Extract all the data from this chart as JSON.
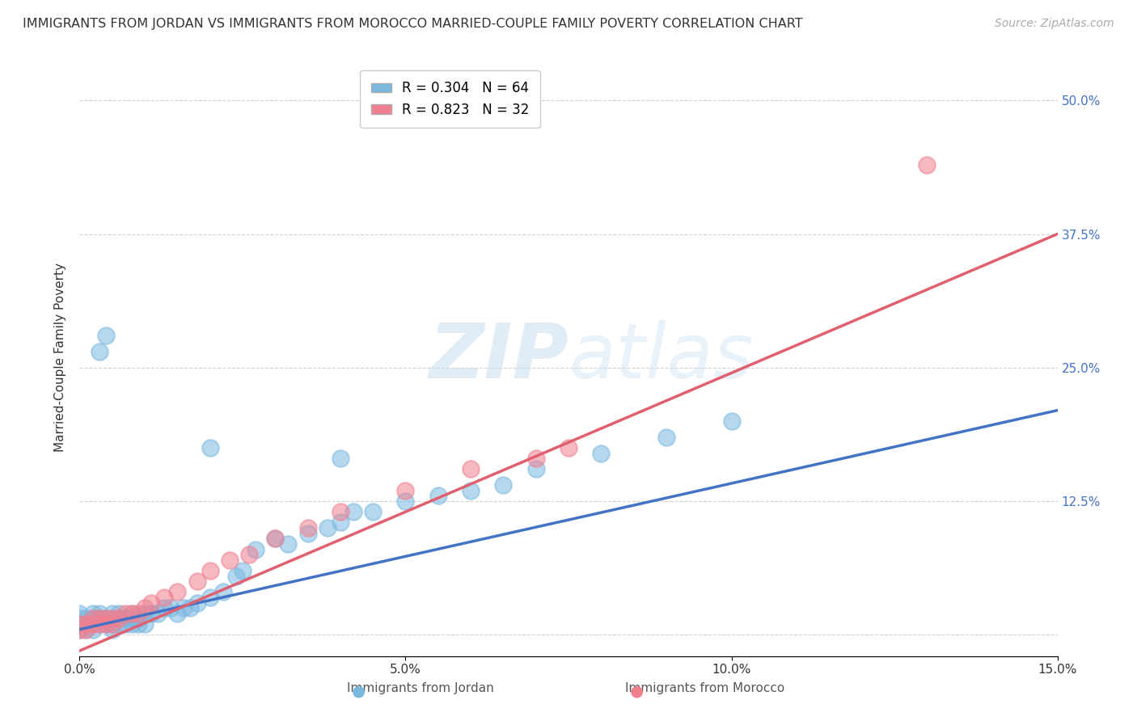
{
  "title": "IMMIGRANTS FROM JORDAN VS IMMIGRANTS FROM MOROCCO MARRIED-COUPLE FAMILY POVERTY CORRELATION CHART",
  "source": "Source: ZipAtlas.com",
  "ylabel_label": "Married-Couple Family Poverty",
  "xlim": [
    0.0,
    0.15
  ],
  "ylim": [
    -0.02,
    0.54
  ],
  "xtick_positions": [
    0.0,
    0.05,
    0.1,
    0.15
  ],
  "xticklabels": [
    "0.0%",
    "5.0%",
    "10.0%",
    "15.0%"
  ],
  "ytick_positions": [
    0.0,
    0.125,
    0.25,
    0.375,
    0.5
  ],
  "yticklabels_right": [
    "",
    "12.5%",
    "25.0%",
    "37.5%",
    "50.0%"
  ],
  "watermark": "ZIPatlas",
  "jordan_color": "#7ab8e0",
  "morocco_color": "#f08090",
  "jordan_trend_color": "#4472c4",
  "morocco_trend_color": "#e06070",
  "grid_color": "#cccccc",
  "background_color": "#ffffff",
  "tick_color": "#4472c4",
  "title_fontsize": 11.5,
  "axis_label_fontsize": 11,
  "tick_fontsize": 11,
  "legend_fontsize": 12,
  "source_fontsize": 10,
  "jordan_x": [
    0.0,
    0.0,
    0.0,
    0.0,
    0.001,
    0.001,
    0.001,
    0.002,
    0.002,
    0.002,
    0.002,
    0.003,
    0.003,
    0.003,
    0.004,
    0.004,
    0.005,
    0.005,
    0.005,
    0.005,
    0.006,
    0.006,
    0.006,
    0.007,
    0.007,
    0.008,
    0.008,
    0.008,
    0.009,
    0.009,
    0.01,
    0.01,
    0.011,
    0.012,
    0.013,
    0.014,
    0.015,
    0.016,
    0.017,
    0.018,
    0.02,
    0.022,
    0.024,
    0.025,
    0.027,
    0.03,
    0.032,
    0.035,
    0.038,
    0.04,
    0.042,
    0.045,
    0.05,
    0.055,
    0.06,
    0.065,
    0.07,
    0.08,
    0.09,
    0.1,
    0.003,
    0.004,
    0.02,
    0.04
  ],
  "jordan_y": [
    0.005,
    0.01,
    0.015,
    0.02,
    0.005,
    0.01,
    0.015,
    0.005,
    0.01,
    0.015,
    0.02,
    0.01,
    0.015,
    0.02,
    0.01,
    0.015,
    0.005,
    0.01,
    0.015,
    0.02,
    0.01,
    0.015,
    0.02,
    0.01,
    0.015,
    0.01,
    0.015,
    0.02,
    0.01,
    0.015,
    0.01,
    0.02,
    0.02,
    0.02,
    0.025,
    0.025,
    0.02,
    0.025,
    0.025,
    0.03,
    0.035,
    0.04,
    0.055,
    0.06,
    0.08,
    0.09,
    0.085,
    0.095,
    0.1,
    0.105,
    0.115,
    0.115,
    0.125,
    0.13,
    0.135,
    0.14,
    0.155,
    0.17,
    0.185,
    0.2,
    0.265,
    0.28,
    0.175,
    0.165
  ],
  "morocco_x": [
    0.0,
    0.0,
    0.001,
    0.001,
    0.002,
    0.002,
    0.003,
    0.003,
    0.004,
    0.004,
    0.005,
    0.005,
    0.006,
    0.007,
    0.008,
    0.009,
    0.01,
    0.011,
    0.013,
    0.015,
    0.018,
    0.02,
    0.023,
    0.026,
    0.03,
    0.035,
    0.04,
    0.05,
    0.06,
    0.07,
    0.075,
    0.13
  ],
  "morocco_y": [
    0.005,
    0.01,
    0.005,
    0.01,
    0.01,
    0.015,
    0.01,
    0.015,
    0.01,
    0.015,
    0.01,
    0.015,
    0.015,
    0.02,
    0.02,
    0.02,
    0.025,
    0.03,
    0.035,
    0.04,
    0.05,
    0.06,
    0.07,
    0.075,
    0.09,
    0.1,
    0.115,
    0.135,
    0.155,
    0.165,
    0.175,
    0.44
  ],
  "jordan_trend_x": [
    0.0,
    0.15
  ],
  "jordan_trend_y": [
    0.005,
    0.21
  ],
  "morocco_trend_x": [
    0.0,
    0.15
  ],
  "morocco_trend_y": [
    -0.015,
    0.375
  ],
  "legend_jordan_label": "R = 0.304   N = 64",
  "legend_morocco_label": "R = 0.823   N = 32",
  "bottom_legend_jordan": "Immigrants from Jordan",
  "bottom_legend_morocco": "Immigrants from Morocco"
}
